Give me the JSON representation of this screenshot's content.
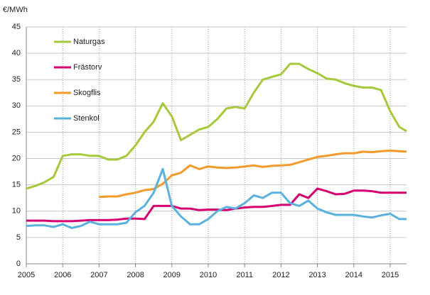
{
  "chart_data": {
    "type": "line",
    "y_label": "€/MWh",
    "x": [
      2005,
      2005.25,
      2005.5,
      2005.75,
      2006,
      2006.25,
      2006.5,
      2006.75,
      2007,
      2007.25,
      2007.5,
      2007.75,
      2008,
      2008.25,
      2008.5,
      2008.75,
      2009,
      2009.25,
      2009.5,
      2009.75,
      2010,
      2010.25,
      2010.5,
      2010.75,
      2011,
      2011.25,
      2011.5,
      2011.75,
      2012,
      2012.25,
      2012.5,
      2012.75,
      2013,
      2013.25,
      2013.5,
      2013.75,
      2014,
      2014.25,
      2014.5,
      2014.75,
      2015,
      2015.25,
      2015.45
    ],
    "series": [
      {
        "name": "Naturgas",
        "color": "#a6c93b",
        "values": [
          14.3,
          14.8,
          15.5,
          16.5,
          20.5,
          20.8,
          20.8,
          20.5,
          20.5,
          19.8,
          19.8,
          20.5,
          22.5,
          25,
          27,
          30.5,
          28,
          23.5,
          24.5,
          25.5,
          26,
          27.5,
          29.5,
          29.8,
          29.5,
          32.5,
          35,
          35.5,
          36,
          38,
          38,
          37,
          36.2,
          35.2,
          35,
          34.3,
          33.8,
          33.5,
          33.5,
          33,
          29,
          26,
          25.2
        ]
      },
      {
        "name": "Frästorv",
        "color": "#d6006f",
        "values": [
          8.2,
          8.2,
          8.2,
          8.1,
          8.1,
          8.1,
          8.2,
          8.3,
          8.3,
          8.3,
          8.4,
          8.6,
          8.6,
          8.5,
          11,
          11,
          11,
          10.5,
          10.5,
          10.2,
          10.3,
          10.3,
          10.2,
          10.5,
          10.7,
          10.8,
          10.8,
          11,
          11.2,
          11.2,
          13.2,
          12.5,
          14.3,
          13.8,
          13.2,
          13.3,
          13.9,
          13.9,
          13.8,
          13.5,
          13.5,
          13.5,
          13.5
        ]
      },
      {
        "name": "Skogflis",
        "color": "#f39a2c",
        "values": [
          null,
          null,
          null,
          null,
          null,
          null,
          null,
          null,
          12.7,
          12.8,
          12.8,
          13.2,
          13.5,
          14,
          14.2,
          15.2,
          16.8,
          17.3,
          18.7,
          18,
          18.5,
          18.3,
          18.2,
          18.3,
          18.5,
          18.7,
          18.4,
          18.6,
          18.7,
          18.8,
          19.3,
          19.8,
          20.3,
          20.5,
          20.8,
          21,
          21,
          21.3,
          21.2,
          21.4,
          21.5,
          21.4,
          21.3
        ]
      },
      {
        "name": "Stenkol",
        "color": "#5ab1de",
        "values": [
          7.2,
          7.3,
          7.3,
          7,
          7.5,
          6.8,
          7.2,
          8,
          7.5,
          7.5,
          7.5,
          7.8,
          9.8,
          11,
          13.5,
          18,
          11,
          9,
          7.5,
          7.5,
          8.5,
          10,
          10.8,
          10.5,
          11.5,
          13,
          12.5,
          13.5,
          13.5,
          11.5,
          11,
          12,
          10.5,
          9.8,
          9.3,
          9.3,
          9.3,
          9,
          8.8,
          9.2,
          9.5,
          8.5,
          8.5
        ]
      }
    ],
    "xlim": [
      2005,
      2015.45
    ],
    "xticks": [
      2005,
      2006,
      2007,
      2008,
      2009,
      2010,
      2011,
      2012,
      2013,
      2014,
      2015
    ],
    "ylim": [
      0,
      45
    ],
    "yticks": [
      0,
      5,
      10,
      15,
      20,
      25,
      30,
      35,
      40,
      45
    ],
    "grid": true
  }
}
